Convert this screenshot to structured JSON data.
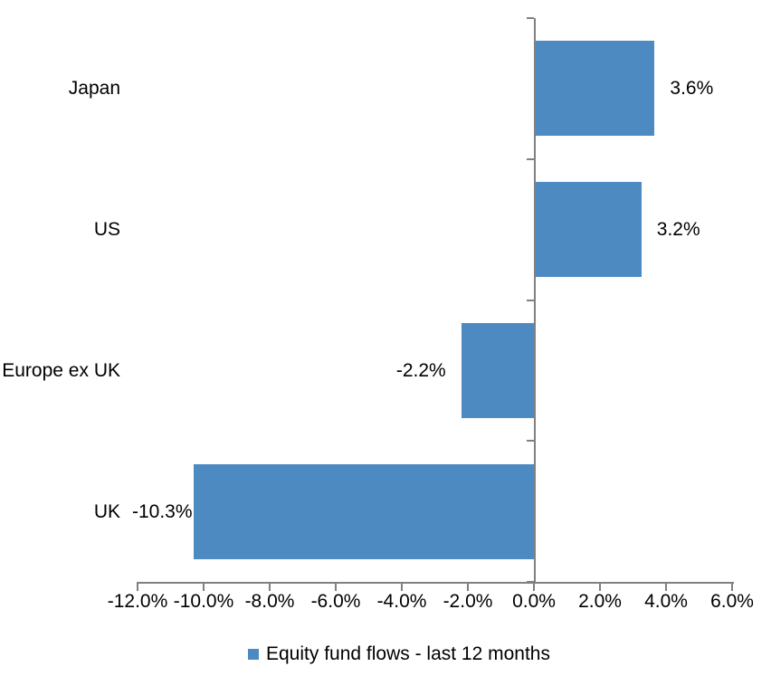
{
  "chart_data": {
    "type": "bar",
    "orientation": "horizontal",
    "title": "",
    "categories": [
      "Japan",
      "US",
      "Europe ex UK",
      "UK"
    ],
    "values": [
      3.6,
      3.2,
      -2.2,
      -10.3
    ],
    "data_labels": [
      "3.6%",
      "3.2%",
      "-2.2%",
      "-10.3%"
    ],
    "legend": "Equity fund flows - last 12 months",
    "legend_position": "bottom-center",
    "x_axis": {
      "min": -12,
      "max": 6,
      "step": 2,
      "tick_values": [
        -12,
        -10,
        -8,
        -6,
        -4,
        -2,
        0,
        2,
        4,
        6
      ],
      "tick_labels": [
        "-12.0%",
        "-10.0%",
        "-8.0%",
        "-6.0%",
        "-4.0%",
        "-2.0%",
        "0.0%",
        "2.0%",
        "4.0%",
        "6.0%"
      ]
    },
    "grid": false,
    "colors": {
      "bar": "#4E8AC2",
      "axis": "#808080",
      "text": "#000000",
      "background": "#FFFFFF"
    }
  }
}
